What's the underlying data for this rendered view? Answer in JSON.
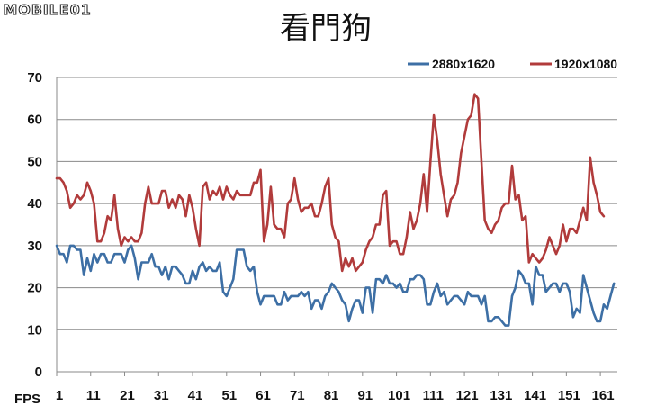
{
  "watermark": "MOBILE01",
  "chart_data": {
    "type": "line",
    "title": "看門狗",
    "ylabel": "FPS",
    "xlabel": "",
    "ylim": [
      0,
      70
    ],
    "y_ticks": [
      0,
      10,
      20,
      30,
      40,
      50,
      60,
      70
    ],
    "x_ticks": [
      1,
      11,
      21,
      31,
      41,
      51,
      61,
      71,
      81,
      91,
      101,
      111,
      121,
      131,
      141,
      151,
      161
    ],
    "xlim": [
      1,
      166
    ],
    "grid": "horizontal",
    "legend_position": "top-right",
    "series": [
      {
        "name": "2880x1620",
        "color": "#3d6fa5",
        "values": [
          30,
          28,
          28,
          26,
          30,
          30,
          29,
          29,
          23,
          27,
          24,
          28,
          26,
          28,
          28,
          26,
          26,
          28,
          28,
          28,
          26,
          29,
          30,
          27,
          22,
          26,
          26,
          26,
          28,
          25,
          25,
          23,
          25,
          22,
          25,
          25,
          24,
          23,
          21,
          21,
          24,
          22,
          25,
          26,
          24,
          25,
          24,
          24,
          26,
          19,
          18,
          20,
          22,
          29,
          29,
          29,
          25,
          24,
          25,
          19,
          16,
          18,
          18,
          18,
          18,
          16,
          16,
          19,
          17,
          18,
          18,
          18,
          19,
          18,
          19,
          15,
          17,
          17,
          15,
          18,
          19,
          21,
          20,
          19,
          17,
          16,
          12,
          15,
          17,
          17,
          14,
          20,
          20,
          14,
          22,
          22,
          21,
          23,
          21,
          21,
          20,
          21,
          19,
          19,
          22,
          22,
          23,
          23,
          22,
          16,
          16,
          19,
          21,
          18,
          19,
          16,
          17,
          18,
          18,
          17,
          16,
          19,
          18,
          18,
          18,
          16,
          18,
          12,
          12,
          13,
          13,
          12,
          11,
          11,
          18,
          20,
          24,
          23,
          21,
          21,
          16,
          25,
          23,
          23,
          19,
          20,
          21,
          21,
          19,
          21,
          21,
          19,
          13,
          15,
          14,
          23,
          20,
          17,
          14,
          12,
          12,
          16,
          15,
          18,
          21
        ]
      },
      {
        "name": "1920x1080",
        "color": "#b13b3b",
        "values": [
          46,
          46,
          45,
          43,
          39,
          40,
          42,
          41,
          42,
          45,
          43,
          40,
          31,
          31,
          33,
          37,
          36,
          42,
          34,
          30,
          32,
          31,
          32,
          31,
          31,
          33,
          40,
          44,
          40,
          40,
          40,
          43,
          43,
          39,
          41,
          39,
          42,
          41,
          37,
          42,
          39,
          34,
          30,
          44,
          45,
          41,
          43,
          42,
          44,
          41,
          44,
          42,
          41,
          43,
          42,
          42,
          42,
          42,
          45,
          45,
          48,
          31,
          35,
          44,
          35,
          34,
          34,
          32,
          40,
          41,
          46,
          41,
          38,
          39,
          39,
          40,
          37,
          37,
          40,
          44,
          46,
          35,
          32,
          31,
          24,
          27,
          25,
          27,
          24,
          25,
          26,
          29,
          31,
          32,
          35,
          35,
          42,
          43,
          30,
          31,
          31,
          28,
          28,
          32,
          38,
          34,
          36,
          40,
          47,
          38,
          50,
          61,
          55,
          47,
          42,
          37,
          41,
          42,
          45,
          52,
          56,
          60,
          61,
          66,
          65,
          50,
          36,
          34,
          33,
          35,
          36,
          39,
          40,
          40,
          49,
          41,
          42,
          36,
          37,
          26,
          28,
          27,
          26,
          27,
          29,
          32,
          30,
          28,
          30,
          35,
          31,
          34,
          34,
          33,
          36,
          39,
          36,
          51,
          45,
          42,
          38,
          37
        ]
      }
    ]
  }
}
